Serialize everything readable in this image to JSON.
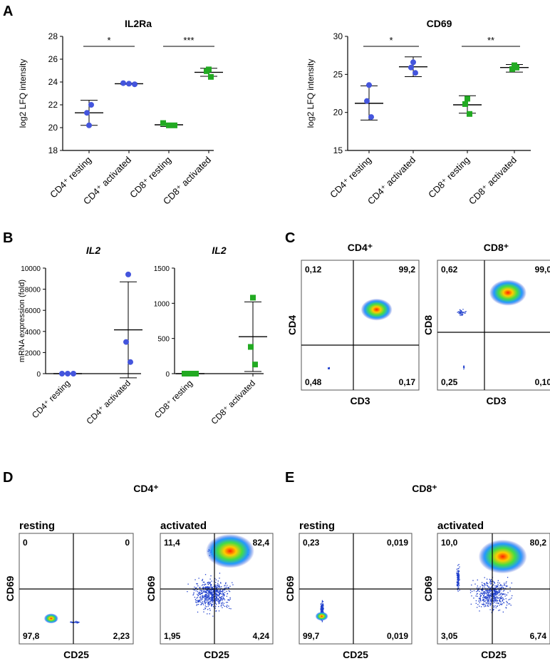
{
  "panel_letters": {
    "A": "A",
    "B": "B",
    "C": "C",
    "D": "D",
    "E": "E"
  },
  "chart_data": [
    {
      "type": "scatter",
      "panel": "A",
      "title": "IL2Ra",
      "ylabel": "log2 LFQ intensity",
      "ylim": [
        18,
        28
      ],
      "yticks": [
        18,
        20,
        22,
        24,
        26,
        28
      ],
      "categories": [
        "CD4⁺ resting",
        "CD4⁺ activated",
        "CD8⁺ resting",
        "CD8⁺ activated"
      ],
      "points": [
        [
          20.2,
          21.3,
          22.0
        ],
        [
          23.9,
          23.85,
          23.8
        ],
        [
          20.4,
          20.2,
          20.2
        ],
        [
          25.1,
          24.95,
          24.45
        ]
      ],
      "means": [
        21.3,
        23.85,
        20.25,
        24.85
      ],
      "sd_low": [
        20.2,
        23.8,
        20.1,
        24.5
      ],
      "sd_high": [
        22.4,
        23.9,
        20.4,
        25.2
      ],
      "colors": [
        "#4455dd",
        "#4455dd",
        "#22aa22",
        "#22aa22"
      ],
      "markers": [
        "circle",
        "circle",
        "square",
        "square"
      ],
      "significance": [
        {
          "from": 0,
          "to": 1,
          "label": "*"
        },
        {
          "from": 2,
          "to": 3,
          "label": "***"
        }
      ]
    },
    {
      "type": "scatter",
      "panel": "A",
      "title": "CD69",
      "ylabel": "log2 LFQ intensity",
      "ylim": [
        15,
        30
      ],
      "yticks": [
        15,
        20,
        25,
        30
      ],
      "categories": [
        "CD4⁺ resting",
        "CD4⁺ activated",
        "CD8⁺ resting",
        "CD8⁺ activated"
      ],
      "points": [
        [
          23.6,
          21.5,
          19.4
        ],
        [
          26.6,
          25.9,
          25.2
        ],
        [
          21.8,
          21.1,
          19.8
        ],
        [
          26.2,
          25.7,
          25.9
        ]
      ],
      "means": [
        21.2,
        26.0,
        21.0,
        25.9
      ],
      "sd_low": [
        19.0,
        24.7,
        19.9,
        25.3
      ],
      "sd_high": [
        23.5,
        27.3,
        22.2,
        26.3
      ],
      "colors": [
        "#4455dd",
        "#4455dd",
        "#22aa22",
        "#22aa22"
      ],
      "markers": [
        "circle",
        "circle",
        "square",
        "square"
      ],
      "significance": [
        {
          "from": 0,
          "to": 1,
          "label": "*"
        },
        {
          "from": 2,
          "to": 3,
          "label": "**"
        }
      ]
    },
    {
      "type": "scatter",
      "panel": "B",
      "title": "IL2",
      "ylabel": "mRNA expression (fold)",
      "ylim": [
        0,
        10000
      ],
      "yticks": [
        0,
        2000,
        4000,
        6000,
        8000,
        10000
      ],
      "categories": [
        "CD4⁺ resting",
        "CD4⁺ activated"
      ],
      "points": [
        [
          0,
          0,
          0
        ],
        [
          9400,
          3000,
          1100
        ]
      ],
      "means": [
        0,
        4150
      ],
      "sd_low": [
        0,
        -400
      ],
      "sd_high": [
        0,
        8700
      ],
      "colors": [
        "#4455dd",
        "#4455dd"
      ],
      "markers": [
        "circle",
        "circle"
      ],
      "dotted_zero": true
    },
    {
      "type": "scatter",
      "panel": "B",
      "title": "IL2",
      "ylabel": "",
      "ylim": [
        0,
        1500
      ],
      "yticks": [
        0,
        500,
        1000,
        1500
      ],
      "categories": [
        "CD8⁺ resting",
        "CD8⁺ activated"
      ],
      "points": [
        [
          0,
          0,
          0
        ],
        [
          1080,
          380,
          130
        ]
      ],
      "means": [
        0,
        525
      ],
      "sd_low": [
        0,
        30
      ],
      "sd_high": [
        0,
        1020
      ],
      "colors": [
        "#22aa22",
        "#22aa22"
      ],
      "markers": [
        "square",
        "square"
      ],
      "dotted_zero": true
    }
  ],
  "flow_panels": {
    "C": {
      "plots": [
        {
          "header": "CD4⁺",
          "xlabel": "CD3",
          "ylabel": "CD4",
          "q": {
            "tl": "0,12",
            "tr": "99,2",
            "bl": "0,48",
            "br": "0,17"
          }
        },
        {
          "header": "CD8⁺",
          "xlabel": "CD3",
          "ylabel": "CD8",
          "q": {
            "tl": "0,62",
            "tr": "99,0",
            "bl": "0,25",
            "br": "0,10"
          }
        }
      ]
    },
    "D": {
      "header": "CD4⁺",
      "plots": [
        {
          "state": "resting",
          "xlabel": "CD25",
          "ylabel": "CD69",
          "q": {
            "tl": "0",
            "tr": "0",
            "bl": "97,8",
            "br": "2,23"
          }
        },
        {
          "state": "activated",
          "xlabel": "CD25",
          "ylabel": "CD69",
          "q": {
            "tl": "11,4",
            "tr": "82,4",
            "bl": "1,95",
            "br": "4,24"
          }
        }
      ]
    },
    "E": {
      "header": "CD8⁺",
      "plots": [
        {
          "state": "resting",
          "xlabel": "CD25",
          "ylabel": "CD69",
          "q": {
            "tl": "0,23",
            "tr": "0,019",
            "bl": "99,7",
            "br": "0,019"
          }
        },
        {
          "state": "activated",
          "xlabel": "CD25",
          "ylabel": "CD69",
          "q": {
            "tl": "10,0",
            "tr": "80,2",
            "bl": "3,05",
            "br": "6,74"
          }
        }
      ]
    }
  }
}
